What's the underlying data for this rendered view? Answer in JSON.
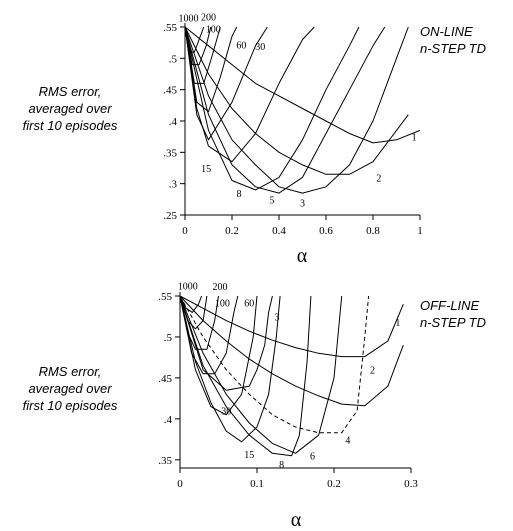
{
  "chart_data": [
    {
      "type": "line",
      "ylabel_lines": [
        "RMS error,",
        "averaged over",
        "first 10 episodes"
      ],
      "xlabel": "α",
      "title_lines": [
        "ON-LINE",
        "n-STEP TD"
      ],
      "xlim": [
        0,
        1
      ],
      "ylim": [
        0.25,
        0.55
      ],
      "xticks": [
        0,
        0.2,
        0.4,
        0.6,
        0.8,
        1
      ],
      "xtick_labels": [
        "0",
        "0.2",
        "0.4",
        "0.6",
        "0.8",
        "1"
      ],
      "yticks": [
        0.25,
        0.3,
        0.35,
        0.4,
        0.45,
        0.5,
        0.55
      ],
      "ytick_labels": [
        ".25",
        ".3",
        ".35",
        ".4",
        ".45",
        ".5",
        ".55"
      ],
      "grid": false,
      "legend": "none",
      "series": [
        {
          "name": "1",
          "dashed": false,
          "x": [
            0,
            0.1,
            0.2,
            0.3,
            0.4,
            0.5,
            0.6,
            0.7,
            0.8,
            0.9,
            1.0
          ],
          "y": [
            0.55,
            0.52,
            0.49,
            0.46,
            0.44,
            0.42,
            0.4,
            0.38,
            0.365,
            0.37,
            0.385
          ],
          "label_at": [
            0.975,
            0.375
          ]
        },
        {
          "name": "2",
          "dashed": false,
          "x": [
            0,
            0.1,
            0.2,
            0.3,
            0.4,
            0.5,
            0.6,
            0.7,
            0.8,
            0.9,
            0.95
          ],
          "y": [
            0.55,
            0.475,
            0.42,
            0.38,
            0.35,
            0.33,
            0.315,
            0.315,
            0.335,
            0.385,
            0.41
          ],
          "label_at": [
            0.825,
            0.31
          ]
        },
        {
          "name": "3",
          "dashed": false,
          "x": [
            0,
            0.1,
            0.2,
            0.3,
            0.4,
            0.5,
            0.6,
            0.7,
            0.8,
            0.9,
            0.95
          ],
          "y": [
            0.55,
            0.44,
            0.37,
            0.33,
            0.295,
            0.285,
            0.295,
            0.33,
            0.4,
            0.5,
            0.55
          ],
          "label_at": [
            0.5,
            0.27
          ]
        },
        {
          "name": "5",
          "dashed": false,
          "x": [
            0,
            0.1,
            0.2,
            0.3,
            0.4,
            0.5,
            0.6,
            0.7,
            0.8,
            0.85
          ],
          "y": [
            0.55,
            0.41,
            0.33,
            0.295,
            0.285,
            0.31,
            0.38,
            0.45,
            0.52,
            0.55
          ],
          "label_at": [
            0.37,
            0.275
          ]
        },
        {
          "name": "8",
          "dashed": false,
          "x": [
            0,
            0.1,
            0.2,
            0.3,
            0.4,
            0.5,
            0.6,
            0.7,
            0.74
          ],
          "y": [
            0.55,
            0.385,
            0.305,
            0.29,
            0.31,
            0.37,
            0.45,
            0.52,
            0.55
          ],
          "label_at": [
            0.23,
            0.285
          ]
        },
        {
          "name": "15",
          "dashed": false,
          "x": [
            0,
            0.05,
            0.1,
            0.2,
            0.3,
            0.4,
            0.5,
            0.55
          ],
          "y": [
            0.55,
            0.42,
            0.36,
            0.335,
            0.38,
            0.46,
            0.53,
            0.55
          ],
          "label_at": [
            0.09,
            0.325
          ]
        },
        {
          "name": "30",
          "dashed": false,
          "x": [
            0,
            0.05,
            0.1,
            0.2,
            0.3,
            0.35
          ],
          "y": [
            0.55,
            0.41,
            0.37,
            0.43,
            0.52,
            0.55
          ],
          "label_at": [
            0.32,
            0.52
          ]
        },
        {
          "name": "60",
          "dashed": false,
          "x": [
            0,
            0.05,
            0.1,
            0.15,
            0.2,
            0.22
          ],
          "y": [
            0.55,
            0.43,
            0.415,
            0.47,
            0.535,
            0.55
          ],
          "label_at": [
            0.24,
            0.522
          ]
        },
        {
          "name": "100",
          "dashed": false,
          "x": [
            0,
            0.04,
            0.08,
            0.12,
            0.15
          ],
          "y": [
            0.55,
            0.46,
            0.46,
            0.51,
            0.55
          ],
          "label_at": [
            0.12,
            0.548
          ]
        },
        {
          "name": "200",
          "dashed": false,
          "x": [
            0,
            0.03,
            0.06,
            0.09,
            0.11
          ],
          "y": [
            0.55,
            0.49,
            0.49,
            0.52,
            0.55
          ],
          "label_at": [
            0.1,
            0.567
          ]
        },
        {
          "name": "1000",
          "dashed": false,
          "x": [
            0,
            0.02,
            0.04,
            0.06,
            0.08
          ],
          "y": [
            0.55,
            0.51,
            0.51,
            0.53,
            0.55
          ],
          "label_at": [
            0.015,
            0.565
          ]
        }
      ]
    },
    {
      "type": "line",
      "ylabel_lines": [
        "RMS error,",
        "averaged over",
        "first 10 episodes"
      ],
      "xlabel": "α",
      "title_lines": [
        "OFF-LINE",
        "n-STEP TD"
      ],
      "xlim": [
        0,
        0.3
      ],
      "ylim": [
        0.34,
        0.55
      ],
      "xticks": [
        0,
        0.1,
        0.2,
        0.3
      ],
      "xtick_labels": [
        "0",
        "0.1",
        "0.2",
        "0.3"
      ],
      "yticks": [
        0.35,
        0.4,
        0.45,
        0.5,
        0.55
      ],
      "ytick_labels": [
        ".35",
        ".4",
        ".45",
        ".5",
        ".55"
      ],
      "grid": false,
      "legend": "none",
      "series": [
        {
          "name": "1",
          "dashed": false,
          "x": [
            0,
            0.03,
            0.06,
            0.09,
            0.12,
            0.15,
            0.18,
            0.21,
            0.24,
            0.27,
            0.29
          ],
          "y": [
            0.55,
            0.535,
            0.52,
            0.507,
            0.496,
            0.487,
            0.48,
            0.476,
            0.476,
            0.495,
            0.54
          ],
          "label_at": [
            0.283,
            0.518
          ]
        },
        {
          "name": "2",
          "dashed": false,
          "x": [
            0,
            0.03,
            0.06,
            0.09,
            0.12,
            0.15,
            0.18,
            0.21,
            0.24,
            0.27,
            0.29
          ],
          "y": [
            0.55,
            0.52,
            0.495,
            0.473,
            0.455,
            0.44,
            0.428,
            0.418,
            0.416,
            0.44,
            0.49
          ],
          "label_at": [
            0.25,
            0.46
          ]
        },
        {
          "name": "4",
          "dashed": true,
          "x": [
            0,
            0.03,
            0.06,
            0.09,
            0.12,
            0.15,
            0.18,
            0.21,
            0.23,
            0.24,
            0.245
          ],
          "y": [
            0.55,
            0.5,
            0.46,
            0.43,
            0.405,
            0.39,
            0.383,
            0.383,
            0.41,
            0.5,
            0.55
          ],
          "label_at": [
            0.218,
            0.375
          ]
        },
        {
          "name": "6",
          "dashed": false,
          "x": [
            0,
            0.03,
            0.06,
            0.09,
            0.12,
            0.15,
            0.18,
            0.2,
            0.21
          ],
          "y": [
            0.55,
            0.48,
            0.43,
            0.395,
            0.37,
            0.358,
            0.38,
            0.45,
            0.55
          ],
          "label_at": [
            0.172,
            0.355
          ]
        },
        {
          "name": "8",
          "dashed": false,
          "x": [
            0,
            0.03,
            0.06,
            0.09,
            0.12,
            0.145,
            0.155,
            0.165,
            0.17
          ],
          "y": [
            0.55,
            0.465,
            0.415,
            0.38,
            0.358,
            0.355,
            0.38,
            0.47,
            0.55
          ],
          "label_at": [
            0.132,
            0.345
          ]
        },
        {
          "name": "15",
          "dashed": false,
          "x": [
            0,
            0.02,
            0.04,
            0.06,
            0.08,
            0.1,
            0.115,
            0.125,
            0.13
          ],
          "y": [
            0.55,
            0.47,
            0.42,
            0.385,
            0.372,
            0.39,
            0.43,
            0.5,
            0.55
          ],
          "label_at": [
            0.09,
            0.357
          ]
        },
        {
          "name": "30",
          "dashed": false,
          "x": [
            0,
            0.02,
            0.04,
            0.06,
            0.08,
            0.095,
            0.1
          ],
          "y": [
            0.55,
            0.46,
            0.415,
            0.405,
            0.43,
            0.5,
            0.55
          ],
          "label_at": [
            0.06,
            0.41
          ]
        },
        {
          "name": "60",
          "dashed": false,
          "x": [
            0,
            0.015,
            0.03,
            0.045,
            0.06,
            0.07,
            0.075
          ],
          "y": [
            0.55,
            0.48,
            0.455,
            0.455,
            0.48,
            0.53,
            0.55
          ],
          "label_at": [
            0.09,
            0.542
          ]
        },
        {
          "name": "100",
          "dashed": false,
          "x": [
            0,
            0.01,
            0.02,
            0.035,
            0.045,
            0.05
          ],
          "y": [
            0.55,
            0.505,
            0.485,
            0.485,
            0.52,
            0.55
          ],
          "label_at": [
            0.055,
            0.542
          ]
        },
        {
          "name": "200",
          "dashed": false,
          "x": [
            0,
            0.01,
            0.02,
            0.03,
            0.035
          ],
          "y": [
            0.55,
            0.52,
            0.51,
            0.52,
            0.55
          ],
          "label_at": [
            0.052,
            0.562
          ]
        },
        {
          "name": "1000",
          "dashed": false,
          "x": [
            0,
            0.008,
            0.016,
            0.024,
            0.028
          ],
          "y": [
            0.55,
            0.535,
            0.53,
            0.54,
            0.55
          ],
          "label_at": [
            0.01,
            0.563
          ]
        },
        {
          "name": "3",
          "dashed": false,
          "x": [
            0,
            0.03,
            0.06,
            0.09,
            0.1,
            0.11,
            0.115,
            0.12
          ],
          "y": [
            0.55,
            0.46,
            0.435,
            0.44,
            0.46,
            0.49,
            0.53,
            0.55
          ],
          "label_at": [
            0.126,
            0.525
          ]
        }
      ]
    }
  ]
}
